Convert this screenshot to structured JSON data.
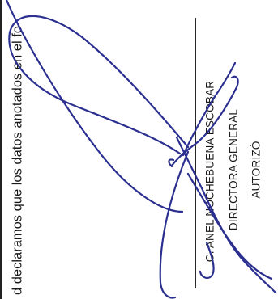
{
  "document": {
    "body_text": "d declaramos que los datos anotados en el fo",
    "signatory": {
      "name": "C. ANEL NOCHEBUENA ESCOBAR",
      "title": "DIRECTORA GENERAL",
      "action": "AUTORIZÓ"
    },
    "signature_ink_color": "#2b2f8f"
  }
}
